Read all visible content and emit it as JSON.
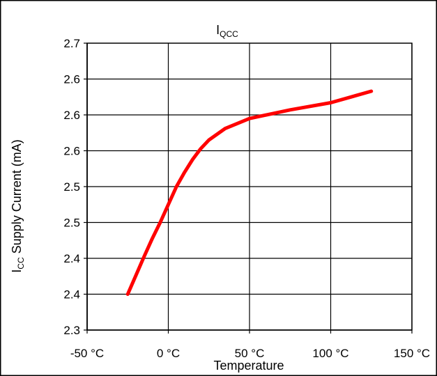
{
  "chart_data": {
    "type": "line",
    "title_main": "I",
    "title_sub": "QCC",
    "xlabel": "Temperature",
    "ylabel_main": "I",
    "ylabel_sub": "CC",
    "ylabel_rest": " Supply Current (mA)",
    "xlim": [
      -50,
      150
    ],
    "ylim": [
      2.3,
      2.7
    ],
    "xticks": [
      -50,
      0,
      50,
      100,
      150
    ],
    "xtick_labels": [
      "-50 °C",
      "0 °C",
      "50 °C",
      "100 °C",
      "150 °C"
    ],
    "yticks": [
      2.3,
      2.35,
      2.4,
      2.45,
      2.5,
      2.55,
      2.6,
      2.65,
      2.7
    ],
    "ytick_labels": [
      "2.3",
      "2.4",
      "2.4",
      "2.5",
      "2.5",
      "2.6",
      "2.6",
      "2.6",
      "2.7"
    ],
    "grid": true,
    "legend": "none",
    "series": [
      {
        "color": "#ff0000",
        "x": [
          -25,
          -20,
          -15,
          -10,
          -5,
          0,
          5,
          10,
          15,
          20,
          25,
          35,
          50,
          75,
          100,
          125
        ],
        "y": [
          2.35,
          2.376,
          2.402,
          2.427,
          2.45,
          2.475,
          2.5,
          2.52,
          2.538,
          2.553,
          2.565,
          2.581,
          2.595,
          2.607,
          2.617,
          2.633
        ]
      }
    ]
  }
}
